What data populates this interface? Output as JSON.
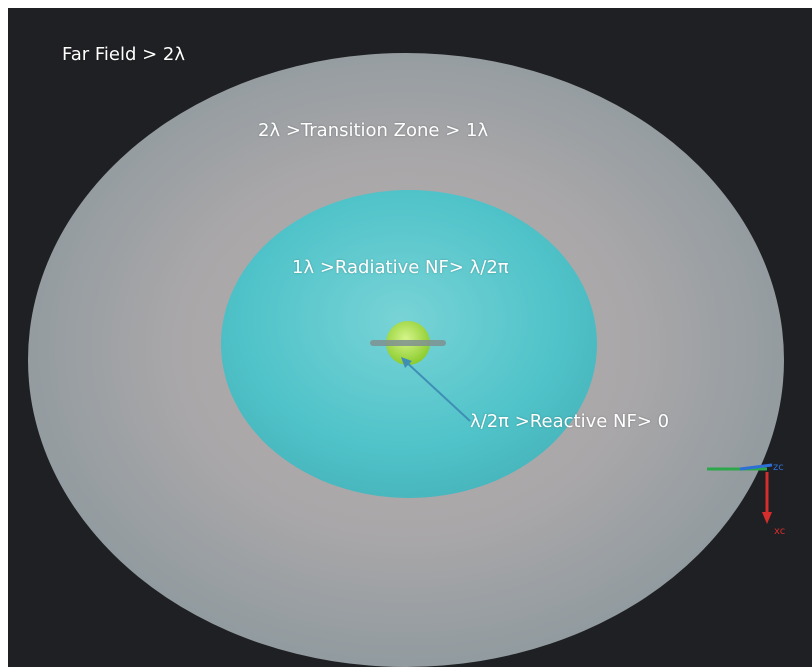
{
  "zones": {
    "far_field": "Far Field > 2λ",
    "transition": "2λ >Transition Zone > 1λ",
    "radiative": "1λ >Radiative NF> λ/2π",
    "reactive": "λ/2π >Reactive NF> 0"
  },
  "axes": {
    "zc": "zc",
    "xc": "xc"
  },
  "colors": {
    "background": "#1f2023",
    "outer_sphere": "#9aa3a8",
    "inner_sphere": "#4cc3c8",
    "core": "#a9e045",
    "pointer": "#3f8fb5",
    "axis_z": "#2d6fd6",
    "axis_y": "#2ca84a",
    "axis_x": "#d62d2d"
  }
}
